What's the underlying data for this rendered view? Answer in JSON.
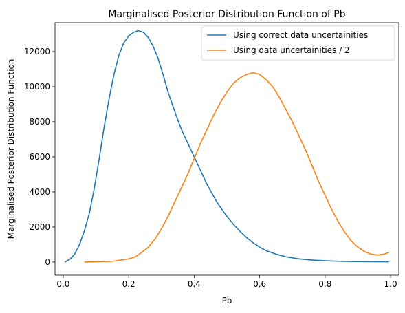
{
  "chart_data": {
    "type": "line",
    "title": "Marginalised Posterior Distribution Function of Pb",
    "xlabel": "Pb",
    "ylabel": "Marginalised Posterior Distribution Function",
    "xlim": [
      -0.025,
      1.025
    ],
    "ylim": [
      -750,
      13650
    ],
    "xticks": [
      0.0,
      0.2,
      0.4,
      0.6,
      0.8,
      1.0
    ],
    "xtick_labels": [
      "0.0",
      "0.2",
      "0.4",
      "0.6",
      "0.8",
      "1.0"
    ],
    "yticks": [
      0,
      2000,
      4000,
      6000,
      8000,
      10000,
      12000
    ],
    "ytick_labels": [
      "0",
      "2000",
      "4000",
      "6000",
      "8000",
      "10000",
      "12000"
    ],
    "grid": false,
    "legend": "top-right",
    "series": [
      {
        "name": "Using correct data uncertainities",
        "color": "#1f77b4",
        "x": [
          0.005,
          0.02,
          0.035,
          0.05,
          0.065,
          0.08,
          0.095,
          0.11,
          0.125,
          0.14,
          0.155,
          0.17,
          0.185,
          0.2,
          0.215,
          0.23,
          0.245,
          0.26,
          0.275,
          0.29,
          0.305,
          0.32,
          0.335,
          0.35,
          0.365,
          0.38,
          0.395,
          0.41,
          0.425,
          0.44,
          0.455,
          0.47,
          0.485,
          0.5,
          0.52,
          0.54,
          0.56,
          0.58,
          0.6,
          0.62,
          0.65,
          0.68,
          0.72,
          0.76,
          0.8,
          0.85,
          0.9,
          0.95,
          0.995
        ],
        "y": [
          0,
          150,
          450,
          1000,
          1800,
          2800,
          4200,
          5900,
          7700,
          9300,
          10700,
          11800,
          12500,
          12900,
          13100,
          13200,
          13100,
          12800,
          12300,
          11600,
          10700,
          9700,
          8900,
          8100,
          7400,
          6800,
          6200,
          5600,
          5000,
          4400,
          3900,
          3400,
          3000,
          2600,
          2150,
          1750,
          1400,
          1100,
          850,
          650,
          450,
          300,
          180,
          110,
          70,
          40,
          25,
          15,
          10
        ]
      },
      {
        "name": "Using data uncertainities / 2",
        "color": "#ff7f0e",
        "x": [
          0.065,
          0.1,
          0.15,
          0.2,
          0.22,
          0.24,
          0.26,
          0.28,
          0.3,
          0.32,
          0.34,
          0.36,
          0.38,
          0.4,
          0.42,
          0.44,
          0.46,
          0.48,
          0.5,
          0.52,
          0.54,
          0.56,
          0.58,
          0.6,
          0.62,
          0.64,
          0.66,
          0.68,
          0.7,
          0.72,
          0.74,
          0.76,
          0.78,
          0.8,
          0.82,
          0.84,
          0.86,
          0.88,
          0.9,
          0.92,
          0.94,
          0.96,
          0.98,
          0.995
        ],
        "y": [
          0,
          10,
          40,
          180,
          300,
          550,
          850,
          1300,
          1900,
          2600,
          3400,
          4200,
          5000,
          5900,
          6800,
          7600,
          8400,
          9100,
          9700,
          10200,
          10500,
          10700,
          10800,
          10700,
          10400,
          10000,
          9400,
          8700,
          8000,
          7200,
          6400,
          5500,
          4600,
          3800,
          3000,
          2300,
          1700,
          1200,
          850,
          600,
          450,
          400,
          450,
          550
        ]
      }
    ]
  }
}
